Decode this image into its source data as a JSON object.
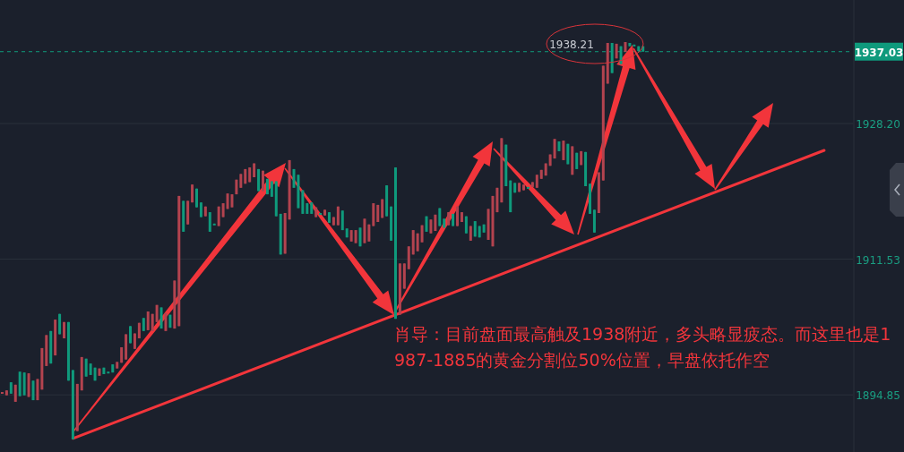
{
  "chart_data": {
    "type": "candlestick",
    "annotations": [
      "肖导：目前盘面最高触及1938附近，多头略显疲态。而这里也是1987-1885的黄金分割位50%位置，早盘依托作空",
      "1938.21"
    ],
    "series": [
      {
        "type": "line",
        "color": "#f2353b",
        "values": [
          null,
          null,
          null,
          null,
          null,
          null,
          null,
          null,
          null,
          null,
          null,
          null,
          null,
          null,
          null,
          null,
          1889.5,
          null,
          null,
          null,
          null,
          null,
          null,
          null,
          null,
          null,
          null,
          null,
          null,
          null,
          null,
          null,
          null,
          null,
          null,
          null,
          null,
          null,
          null,
          null,
          null,
          null,
          null,
          null,
          null,
          null,
          null,
          null,
          null,
          null,
          null,
          null,
          null,
          null,
          null,
          null,
          null,
          null,
          null,
          null,
          null,
          null,
          null,
          null,
          null,
          null,
          null,
          null,
          null,
          null,
          null,
          null,
          null,
          null,
          null,
          null,
          null,
          null,
          null,
          null,
          null,
          null,
          null,
          null,
          null,
          null,
          null,
          null,
          null,
          null,
          null,
          null,
          null,
          null,
          null,
          null,
          null,
          null,
          null,
          null,
          null,
          null,
          null,
          null,
          null,
          null,
          null,
          null,
          null,
          null,
          null,
          null,
          null,
          null,
          null,
          null,
          null,
          null,
          null,
          null,
          null,
          null,
          null,
          null,
          null,
          null,
          null,
          null,
          null,
          null,
          null,
          null,
          null,
          null,
          null,
          null,
          null,
          null,
          null,
          null,
          null,
          null,
          null,
          null,
          null,
          null,
          null,
          null,
          null,
          null,
          null,
          null,
          null,
          null,
          null,
          null,
          null,
          null,
          null,
          null,
          null,
          null,
          null,
          null,
          null,
          null,
          null,
          null,
          null,
          null,
          null,
          null,
          null,
          null,
          null,
          null,
          null,
          null,
          null,
          null,
          null,
          null,
          null,
          null,
          null,
          null,
          1924.9,
          null,
          null,
          null,
          null,
          null,
          null
        ]
      }
    ],
    "categories": [
      null,
      null,
      null,
      null,
      null,
      null,
      null,
      null,
      null,
      null,
      null,
      null,
      null,
      null,
      null,
      null,
      null,
      null,
      null,
      null,
      null,
      null,
      null,
      null,
      null,
      null,
      null,
      null,
      null,
      null,
      null,
      null,
      null,
      null,
      null,
      null,
      null,
      null,
      null,
      null,
      null,
      null,
      null,
      null,
      null,
      null,
      null,
      null,
      null,
      null,
      null,
      null,
      null,
      null,
      null,
      null,
      null,
      null,
      null,
      null,
      null,
      null,
      null,
      null,
      null,
      null,
      null,
      null,
      null,
      null,
      null,
      null,
      null,
      null,
      null,
      null,
      null,
      null,
      null,
      null,
      null,
      null,
      null,
      null,
      null,
      null,
      null,
      null,
      null,
      null,
      null,
      null,
      null,
      null,
      null,
      null,
      null,
      null,
      null,
      null,
      null,
      null,
      null,
      null,
      null,
      null,
      null,
      null,
      null,
      null,
      null,
      null,
      null,
      null,
      null,
      null,
      null,
      null,
      null,
      null,
      null,
      null,
      null,
      null,
      null,
      null,
      null,
      null,
      null,
      null,
      null,
      null,
      null,
      null,
      null,
      null,
      null,
      null,
      null,
      null,
      null,
      null,
      null,
      null,
      null,
      null,
      null,
      null,
      null,
      null,
      null,
      null,
      null,
      null,
      null,
      null,
      null,
      null,
      null,
      null,
      null,
      null,
      null,
      null,
      null,
      null,
      null,
      null,
      null,
      null,
      null,
      null,
      null,
      null,
      null,
      null,
      null,
      null,
      null,
      null,
      null,
      null,
      null,
      null,
      null,
      null,
      null,
      null,
      null,
      null,
      null,
      null,
      null
    ],
    "ohlc": [
      [
        1895.1,
        1895.2,
        1895.1,
        1895.2
      ],
      [
        1894.8,
        1895.4,
        1894.8,
        1895.4
      ],
      [
        1896.4,
        1896.4,
        1895.0,
        1895.0
      ],
      [
        1894.0,
        1896.1,
        1894.0,
        1896.1
      ],
      [
        1897.7,
        1897.7,
        1894.7,
        1894.7
      ],
      [
        1897.6,
        1897.6,
        1894.8,
        1894.8
      ],
      [
        1894.6,
        1897.5,
        1894.6,
        1897.5
      ],
      [
        1896.6,
        1896.6,
        1894.2,
        1894.2
      ],
      [
        1894.2,
        1896.8,
        1894.2,
        1896.8
      ],
      [
        1895.5,
        1900.6,
        1895.5,
        1900.6
      ],
      [
        1898.4,
        1902.2,
        1898.4,
        1902.2
      ],
      [
        1902.7,
        1902.7,
        1898.7,
        1898.7
      ],
      [
        1899.7,
        1904.1,
        1899.7,
        1904.1
      ],
      [
        1904.8,
        1904.8,
        1902.3,
        1902.3
      ],
      [
        1901.8,
        1903.8,
        1901.8,
        1903.8
      ],
      [
        1903.8,
        1903.8,
        1896.6,
        1896.6
      ],
      [
        1897.9,
        1897.9,
        1889.4,
        1889.4
      ],
      [
        1890.4,
        1896.2,
        1890.4,
        1896.2
      ],
      [
        1895.4,
        1899.5,
        1895.4,
        1899.5
      ],
      [
        1899.3,
        1899.3,
        1897.1,
        1897.1
      ],
      [
        1898.7,
        1898.7,
        1897.3,
        1897.3
      ],
      [
        1898.2,
        1898.2,
        1896.6,
        1896.6
      ],
      [
        1897.2,
        1898.1,
        1897.2,
        1898.1
      ],
      [
        1898.2,
        1898.2,
        1897.4,
        1897.4
      ],
      [
        1897.7,
        1897.7,
        1897.6,
        1897.6
      ],
      [
        1898.6,
        1898.6,
        1897.6,
        1897.6
      ],
      [
        1898.1,
        1898.9,
        1898.1,
        1898.9
      ],
      [
        1898.8,
        1900.7,
        1898.8,
        1900.7
      ],
      [
        1899.2,
        1902.3,
        1899.2,
        1902.3
      ],
      [
        1903.3,
        1903.3,
        1901.2,
        1901.2
      ],
      [
        1900.5,
        1902.4,
        1900.5,
        1902.4
      ],
      [
        1901.8,
        1903.7,
        1901.8,
        1903.7
      ],
      [
        1904.3,
        1904.3,
        1902.7,
        1902.7
      ],
      [
        1902.8,
        1905.1,
        1902.8,
        1905.1
      ],
      [
        1902.7,
        1904.8,
        1902.7,
        1904.8
      ],
      [
        1903.8,
        1905.9,
        1903.8,
        1905.9
      ],
      [
        1905.6,
        1905.6,
        1903.0,
        1903.0
      ],
      [
        1902.7,
        1904.9,
        1902.7,
        1904.9
      ],
      [
        1904.7,
        1904.7,
        1903.1,
        1903.1
      ],
      [
        1903.0,
        1908.9,
        1903.0,
        1908.9
      ],
      [
        1903.3,
        1919.3,
        1903.3,
        1919.3
      ],
      [
        1918.7,
        1918.7,
        1914.9,
        1914.9
      ],
      [
        1915.8,
        1918.7,
        1915.8,
        1918.7
      ],
      [
        1918.5,
        1920.7,
        1918.5,
        1920.7
      ],
      [
        1920.2,
        1920.2,
        1917.9,
        1917.9
      ],
      [
        1918.5,
        1918.5,
        1916.7,
        1916.7
      ],
      [
        1916.8,
        1918.0,
        1916.8,
        1918.0
      ],
      [
        1917.3,
        1917.3,
        1914.9,
        1914.9
      ],
      [
        1915.9,
        1915.9,
        1915.8,
        1915.8
      ],
      [
        1915.6,
        1918.0,
        1915.6,
        1918.0
      ],
      [
        1916.7,
        1918.4,
        1916.7,
        1918.4
      ],
      [
        1917.7,
        1919.6,
        1917.7,
        1919.6
      ],
      [
        1917.9,
        1919.5,
        1917.9,
        1919.5
      ],
      [
        1919.5,
        1921.3,
        1919.5,
        1921.3
      ],
      [
        1920.3,
        1922.0,
        1920.3,
        1922.0
      ],
      [
        1920.8,
        1922.6,
        1920.8,
        1922.6
      ],
      [
        1921.0,
        1922.8,
        1921.0,
        1922.8
      ],
      [
        1921.6,
        1923.3,
        1921.6,
        1923.3
      ],
      [
        1922.6,
        1922.6,
        1919.9,
        1919.9
      ],
      [
        1919.9,
        1922.4,
        1919.9,
        1922.4
      ],
      [
        1921.4,
        1921.4,
        1919.5,
        1919.5
      ],
      [
        1921.1,
        1921.1,
        1919.2,
        1919.2
      ],
      [
        1921.1,
        1921.1,
        1916.8,
        1916.8
      ],
      [
        1917.1,
        1917.1,
        1912.1,
        1912.1
      ],
      [
        1912.2,
        1917.2,
        1912.2,
        1917.2
      ],
      [
        1916.4,
        1923.7,
        1916.4,
        1923.7
      ],
      [
        1922.6,
        1922.6,
        1920.3,
        1920.3
      ],
      [
        1921.9,
        1921.9,
        1917.8,
        1917.8
      ],
      [
        1920.0,
        1920.0,
        1917.1,
        1917.1
      ],
      [
        1918.4,
        1918.4,
        1917.1,
        1917.1
      ],
      [
        1918.5,
        1918.5,
        1917.1,
        1917.1
      ],
      [
        1916.7,
        1917.9,
        1916.7,
        1917.9
      ],
      [
        1917.2,
        1917.2,
        1917.1,
        1917.1
      ],
      [
        1916.9,
        1917.6,
        1916.9,
        1917.6
      ],
      [
        1917.3,
        1917.3,
        1916.0,
        1916.0
      ],
      [
        1915.7,
        1916.7,
        1915.7,
        1916.7
      ],
      [
        1915.7,
        1918.0,
        1915.7,
        1918.0
      ],
      [
        1917.5,
        1917.5,
        1915.1,
        1915.1
      ],
      [
        1915.3,
        1915.3,
        1914.2,
        1914.2
      ],
      [
        1913.7,
        1915.1,
        1913.7,
        1915.1
      ],
      [
        1913.5,
        1915.1,
        1913.5,
        1915.1
      ],
      [
        1915.4,
        1915.4,
        1913.1,
        1913.1
      ],
      [
        1913.5,
        1916.5,
        1913.5,
        1916.5
      ],
      [
        1913.7,
        1915.8,
        1913.7,
        1915.8
      ],
      [
        1915.6,
        1918.4,
        1915.6,
        1918.4
      ],
      [
        1916.1,
        1918.2,
        1916.1,
        1918.2
      ],
      [
        1916.6,
        1918.9,
        1916.6,
        1918.9
      ],
      [
        1920.6,
        1920.6,
        1916.8,
        1916.8
      ],
      [
        1918.0,
        1918.0,
        1913.8,
        1913.8
      ],
      [
        1922.8,
        1922.8,
        1904.2,
        1904.2
      ],
      [
        1904.7,
        1911.0,
        1904.7,
        1911.0
      ],
      [
        1907.9,
        1911.0,
        1907.9,
        1911.0
      ],
      [
        1910.3,
        1913.1,
        1910.3,
        1913.1
      ],
      [
        1912.1,
        1915.1,
        1912.1,
        1915.1
      ],
      [
        1912.5,
        1914.7,
        1912.5,
        1914.7
      ],
      [
        1913.6,
        1915.7,
        1913.6,
        1915.7
      ],
      [
        1916.8,
        1916.8,
        1914.9,
        1914.9
      ],
      [
        1914.7,
        1916.4,
        1914.7,
        1916.4
      ],
      [
        1915.0,
        1917.0,
        1915.0,
        1917.0
      ],
      [
        1917.8,
        1917.8,
        1915.6,
        1915.6
      ],
      [
        1916.5,
        1916.5,
        1915.4,
        1915.4
      ],
      [
        1915.7,
        1917.3,
        1915.7,
        1917.3
      ],
      [
        1917.1,
        1917.1,
        1915.6,
        1915.6
      ],
      [
        1915.6,
        1918.0,
        1915.6,
        1918.0
      ],
      [
        1916.1,
        1917.3,
        1916.1,
        1917.3
      ],
      [
        1916.8,
        1916.8,
        1914.7,
        1914.7
      ],
      [
        1913.8,
        1915.6,
        1913.8,
        1915.6
      ],
      [
        1916.2,
        1916.2,
        1914.3,
        1914.3
      ],
      [
        1915.6,
        1915.6,
        1914.2,
        1914.2
      ],
      [
        1915.8,
        1915.8,
        1914.8,
        1914.8
      ],
      [
        1913.9,
        1917.7,
        1913.9,
        1917.7
      ],
      [
        1913.1,
        1919.3,
        1913.1,
        1919.3
      ],
      [
        1917.3,
        1920.3,
        1917.3,
        1920.3
      ],
      [
        1918.5,
        1926.4,
        1918.5,
        1926.4
      ],
      [
        1925.6,
        1925.6,
        1920.5,
        1920.5
      ],
      [
        1921.2,
        1921.2,
        1917.3,
        1917.3
      ],
      [
        1920.9,
        1920.9,
        1919.7,
        1919.7
      ],
      [
        1919.8,
        1920.9,
        1919.8,
        1920.9
      ],
      [
        1920.0,
        1920.7,
        1920.0,
        1920.7
      ],
      [
        1920.4,
        1920.4,
        1920.3,
        1920.3
      ],
      [
        1920.4,
        1921.0,
        1920.4,
        1921.0
      ],
      [
        1920.3,
        1921.9,
        1920.3,
        1921.9
      ],
      [
        1921.4,
        1922.5,
        1921.4,
        1922.5
      ],
      [
        1921.8,
        1923.3,
        1921.8,
        1923.3
      ],
      [
        1923.0,
        1924.4,
        1923.0,
        1924.4
      ],
      [
        1923.9,
        1926.3,
        1923.9,
        1926.3
      ],
      [
        1926.0,
        1926.0,
        1924.8,
        1924.8
      ],
      [
        1923.7,
        1926.1,
        1923.7,
        1926.1
      ],
      [
        1925.7,
        1925.7,
        1923.2,
        1923.2
      ],
      [
        1921.9,
        1925.4,
        1921.9,
        1925.4
      ],
      [
        1924.6,
        1924.6,
        1922.6,
        1922.6
      ],
      [
        1923.1,
        1924.8,
        1923.1,
        1924.8
      ],
      [
        1924.7,
        1924.7,
        1920.5,
        1920.5
      ],
      [
        1920.8,
        1920.8,
        1917.1,
        1917.1
      ],
      [
        1917.6,
        1917.6,
        1914.8,
        1914.8
      ],
      [
        1917.2,
        1922.2,
        1917.2,
        1922.2
      ],
      [
        1921.2,
        1935.3,
        1921.2,
        1935.3
      ],
      [
        1933.1,
        1938.1,
        1933.1,
        1938.1
      ],
      [
        1938.1,
        1938.1,
        1934.4,
        1934.4
      ],
      [
        1936.2,
        1938.0,
        1936.2,
        1938.0
      ],
      [
        1937.7,
        1937.7,
        1935.5,
        1935.5
      ],
      [
        1937.0,
        1938.21,
        1937.0,
        1938.21
      ],
      [
        1938.1,
        1938.1,
        1937.7,
        1937.7
      ],
      [
        1937.9,
        1937.9,
        1937.8,
        1937.8
      ],
      [
        1937.7,
        1937.7,
        1937.1,
        1937.1
      ],
      [
        1937.7,
        1937.7,
        1937.03,
        1937.03
      ],
      null,
      null,
      null,
      null,
      null,
      null,
      null,
      null,
      null,
      null,
      null,
      null,
      null,
      null,
      null,
      null,
      null,
      null,
      null,
      null,
      null,
      null,
      null,
      null,
      null,
      null,
      null,
      null,
      null,
      null,
      null,
      null,
      null,
      null,
      null,
      null,
      null,
      null,
      null,
      null,
      null,
      null,
      null,
      null,
      null,
      null,
      null
    ],
    "colors": [
      "#b3434f",
      "#b3434f",
      "#0f9a7c",
      "#b3434f",
      "#0f9a7c",
      "#0f9a7c",
      "#b3434f",
      "#0f9a7c",
      "#b3434f",
      "#b3434f",
      "#b3434f",
      "#0f9a7c",
      "#b3434f",
      "#0f9a7c",
      "#b3434f",
      "#0f9a7c",
      "#0f9a7c",
      "#b3434f",
      "#b3434f",
      "#0f9a7c",
      "#0f9a7c",
      "#0f9a7c",
      "#b3434f",
      "#0f9a7c",
      "#0f9a7c",
      "#0f9a7c",
      "#b3434f",
      "#b3434f",
      "#b3434f",
      "#0f9a7c",
      "#b3434f",
      "#b3434f",
      "#0f9a7c",
      "#b3434f",
      "#b3434f",
      "#b3434f",
      "#0f9a7c",
      "#b3434f",
      "#0f9a7c",
      "#b3434f",
      "#b3434f",
      "#0f9a7c",
      "#b3434f",
      "#b3434f",
      "#0f9a7c",
      "#0f9a7c",
      "#b3434f",
      "#0f9a7c",
      "#0f9a7c",
      "#b3434f",
      "#b3434f",
      "#b3434f",
      "#b3434f",
      "#b3434f",
      "#b3434f",
      "#b3434f",
      "#b3434f",
      "#b3434f",
      "#0f9a7c",
      "#b3434f",
      "#0f9a7c",
      "#0f9a7c",
      "#0f9a7c",
      "#0f9a7c",
      "#b3434f",
      "#b3434f",
      "#0f9a7c",
      "#0f9a7c",
      "#0f9a7c",
      "#0f9a7c",
      "#0f9a7c",
      "#b3434f",
      "#0f9a7c",
      "#b3434f",
      "#0f9a7c",
      "#b3434f",
      "#b3434f",
      "#0f9a7c",
      "#0f9a7c",
      "#b3434f",
      "#b3434f",
      "#0f9a7c",
      "#b3434f",
      "#b3434f",
      "#b3434f",
      "#b3434f",
      "#b3434f",
      "#0f9a7c",
      "#0f9a7c",
      "#0f9a7c",
      "#b3434f",
      "#b3434f",
      "#b3434f",
      "#b3434f",
      "#b3434f",
      "#b3434f",
      "#0f9a7c",
      "#b3434f",
      "#b3434f",
      "#0f9a7c",
      "#0f9a7c",
      "#b3434f",
      "#0f9a7c",
      "#b3434f",
      "#b3434f",
      "#0f9a7c",
      "#b3434f",
      "#0f9a7c",
      "#0f9a7c",
      "#0f9a7c",
      "#b3434f",
      "#b3434f",
      "#b3434f",
      "#b3434f",
      "#0f9a7c",
      "#0f9a7c",
      "#0f9a7c",
      "#b3434f",
      "#b3434f",
      "#0f9a7c",
      "#b3434f",
      "#b3434f",
      "#b3434f",
      "#b3434f",
      "#b3434f",
      "#b3434f",
      "#0f9a7c",
      "#b3434f",
      "#0f9a7c",
      "#b3434f",
      "#0f9a7c",
      "#b3434f",
      "#0f9a7c",
      "#0f9a7c",
      "#0f9a7c",
      "#b3434f",
      "#b3434f",
      "#b3434f",
      "#0f9a7c",
      "#b3434f",
      "#0f9a7c",
      "#b3434f",
      "#0f9a7c",
      "#0f9a7c",
      "#0f9a7c",
      "#0f9a7c",
      null,
      null,
      null,
      null,
      null,
      null,
      null,
      null,
      null,
      null,
      null,
      null,
      null,
      null,
      null,
      null,
      null,
      null,
      null,
      null,
      null,
      null,
      null,
      null,
      null,
      null,
      null,
      null,
      null,
      null,
      null,
      null,
      null,
      null,
      null,
      null,
      null,
      null,
      null,
      null,
      null,
      null,
      null,
      null,
      null,
      null,
      null
    ],
    "ylim": [
      1887.83,
      1943.38
    ],
    "yticks": [
      {
        "value": 1894.85,
        "label": "1894.85"
      },
      {
        "value": 1911.53,
        "label": "1911.53"
      },
      {
        "value": 1928.2,
        "label": "1928.20"
      }
    ],
    "grid": "y",
    "ref_lines": [
      {
        "axis": "y",
        "value": 1937.03,
        "label": "1937.03",
        "color": "#0f9a7c",
        "line_style": "dashed"
      }
    ]
  }
}
